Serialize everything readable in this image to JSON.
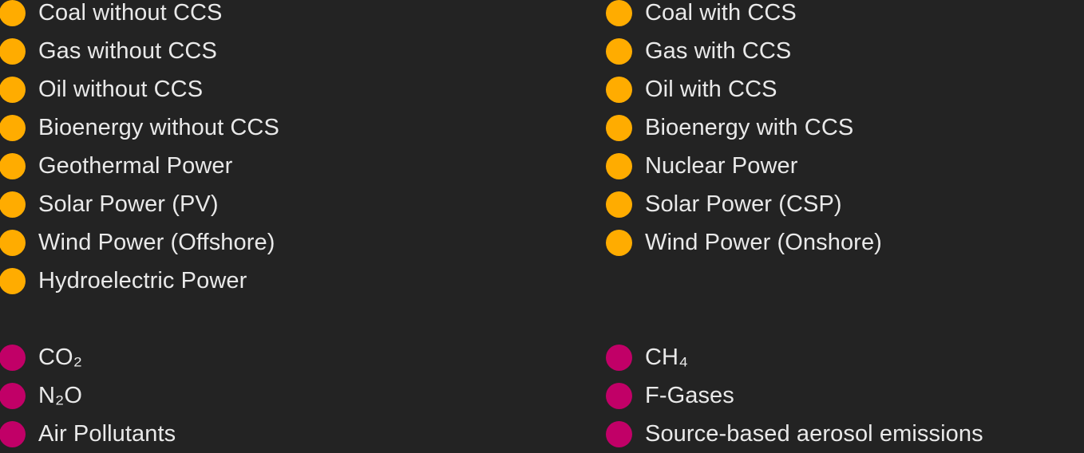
{
  "colors": {
    "energy": "#ffac00",
    "emissions": "#c10067",
    "text": "#e9e9e9",
    "background": "#232323"
  },
  "energy_legend": {
    "left": [
      {
        "label": "Coal without CCS"
      },
      {
        "label": "Gas without CCS"
      },
      {
        "label": "Oil without CCS"
      },
      {
        "label": "Bioenergy without CCS"
      },
      {
        "label": "Geothermal Power"
      },
      {
        "label": "Solar Power (PV)"
      },
      {
        "label": "Wind Power (Offshore)"
      },
      {
        "label": "Hydroelectric Power"
      }
    ],
    "right": [
      {
        "label": "Coal with CCS"
      },
      {
        "label": "Gas with CCS"
      },
      {
        "label": "Oil with CCS"
      },
      {
        "label": "Bioenergy with CCS"
      },
      {
        "label": "Nuclear Power"
      },
      {
        "label": "Solar Power (CSP)"
      },
      {
        "label": "Wind Power (Onshore)"
      }
    ]
  },
  "emissions_legend": {
    "left": [
      {
        "label": "CO₂"
      },
      {
        "label": "N₂O"
      },
      {
        "label": "Air Pollutants"
      }
    ],
    "right": [
      {
        "label": "CH₄"
      },
      {
        "label": "F-Gases"
      },
      {
        "label": "Source-based aerosol emissions"
      }
    ]
  }
}
